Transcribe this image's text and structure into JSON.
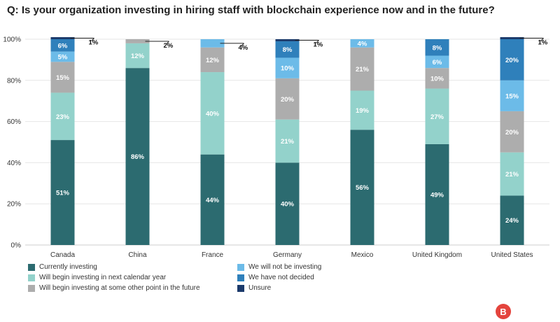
{
  "chart_data": {
    "type": "bar",
    "stacked": true,
    "title": "Q: Is your organization investing in hiring staff with blockchain experience now and in the future?",
    "categories": [
      "Canada",
      "China",
      "France",
      "Germany",
      "Mexico",
      "United Kingdom",
      "United States"
    ],
    "ylim": [
      0,
      100
    ],
    "yticks": [
      "0%",
      "20%",
      "40%",
      "60%",
      "80%",
      "100%"
    ],
    "xlabel": "",
    "ylabel": "",
    "series": [
      {
        "name": "Currently investing",
        "color": "#2c6b70",
        "values": [
          51,
          86,
          44,
          40,
          56,
          49,
          24
        ]
      },
      {
        "name": "Will begin investing in next calendar year",
        "color": "#93d2cb",
        "values": [
          23,
          12,
          40,
          21,
          19,
          27,
          21
        ]
      },
      {
        "name": "Will begin investing at some other point in the future",
        "color": "#adadad",
        "values": [
          15,
          2,
          12,
          20,
          21,
          10,
          20
        ]
      },
      {
        "name": "We will not be investing",
        "color": "#6cbbe8",
        "values": [
          5,
          0,
          4,
          10,
          4,
          6,
          15
        ]
      },
      {
        "name": "We have not decided",
        "color": "#2f80bb",
        "values": [
          6,
          0,
          0,
          8,
          0,
          8,
          20
        ]
      },
      {
        "name": "Unsure",
        "color": "#1b3a6b",
        "values": [
          1,
          0,
          0,
          1,
          0,
          0,
          1
        ]
      }
    ],
    "segment_labels": [
      [
        "51%",
        "23%",
        "15%",
        "5%",
        "6%",
        "1%"
      ],
      [
        "86%",
        "12%",
        "2%",
        "",
        "",
        ""
      ],
      [
        "44%",
        "40%",
        "12%",
        "4%",
        "",
        ""
      ],
      [
        "40%",
        "21%",
        "20%",
        "10%",
        "8%",
        "1%"
      ],
      [
        "56%",
        "19%",
        "21%",
        "4%",
        "",
        ""
      ],
      [
        "49%",
        "27%",
        "10%",
        "6%",
        "8%",
        ""
      ],
      [
        "24%",
        "21%",
        "20%",
        "15%",
        "20%",
        "1%"
      ]
    ],
    "callouts": [
      {
        "category": "Canada",
        "series": "Unsure",
        "label": "1%"
      },
      {
        "category": "China",
        "series": "Will begin investing at some other point in the future",
        "label": "2%"
      },
      {
        "category": "France",
        "series": "We will not be investing",
        "label": "4%"
      },
      {
        "category": "Germany",
        "series": "Unsure",
        "label": "1%"
      },
      {
        "category": "United States",
        "series": "Unsure",
        "label": "1%"
      }
    ],
    "legend": [
      "Currently investing",
      "We will not be investing",
      "Will begin investing in next calendar year",
      "We have not decided",
      "Will begin investing at some other point in the future",
      "Unsure"
    ]
  },
  "logo": {
    "glyph": "B",
    "color": "#e4443d"
  }
}
